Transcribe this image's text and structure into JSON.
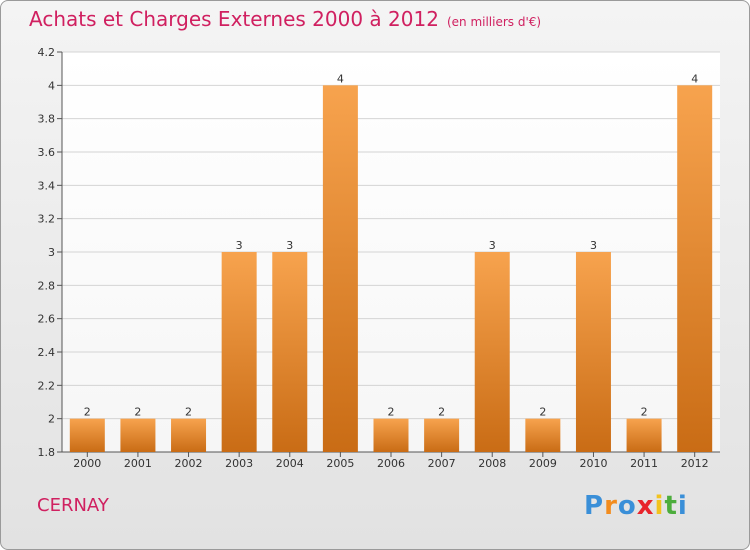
{
  "chart_title": "Achats et Charges Externes 2000 à 2012",
  "chart_subtitle": "(en milliers d'€)",
  "city": "CERNAY",
  "brand": {
    "letters": [
      "P",
      "r",
      "o",
      "x",
      "i",
      "t",
      "i"
    ],
    "colors": [
      "#3a8fd8",
      "#f28c1e",
      "#3a8fd8",
      "#e8242c",
      "#f2c31e",
      "#4cad3c",
      "#3a8fd8"
    ]
  },
  "colors": {
    "title": "#d02060",
    "bar_light": "#f7a14c",
    "bar_dark": "#c96d16",
    "grid": "#d0d0d0"
  },
  "chart_data": {
    "type": "bar",
    "title": "Achats et Charges Externes 2000 à 2012",
    "subtitle": "(en milliers d'€)",
    "categories": [
      "2000",
      "2001",
      "2002",
      "2003",
      "2004",
      "2005",
      "2006",
      "2007",
      "2008",
      "2009",
      "2010",
      "2011",
      "2012"
    ],
    "values": [
      2,
      2,
      2,
      3,
      3,
      4,
      2,
      2,
      3,
      2,
      3,
      2,
      4
    ],
    "data_labels": [
      "2",
      "2",
      "2",
      "3",
      "3",
      "4",
      "2",
      "2",
      "3",
      "2",
      "3",
      "2",
      "4"
    ],
    "ylim": [
      1.8,
      4.2
    ],
    "yticks": [
      1.8,
      2,
      2.2,
      2.4,
      2.6,
      2.8,
      3,
      3.2,
      3.4,
      3.6,
      3.8,
      4,
      4.2
    ],
    "ytick_labels": [
      "1.8",
      "2",
      "2.2",
      "2.4",
      "2.6",
      "2.8",
      "3",
      "3.2",
      "3.4",
      "3.6",
      "3.8",
      "4",
      "4.2"
    ],
    "grid": true,
    "xlabel": "",
    "ylabel": ""
  }
}
